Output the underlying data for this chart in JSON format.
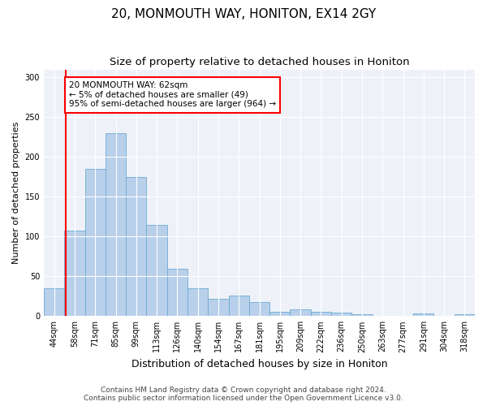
{
  "title": "20, MONMOUTH WAY, HONITON, EX14 2GY",
  "subtitle": "Size of property relative to detached houses in Honiton",
  "xlabel": "Distribution of detached houses by size in Honiton",
  "ylabel": "Number of detached properties",
  "categories": [
    "44sqm",
    "58sqm",
    "71sqm",
    "85sqm",
    "99sqm",
    "113sqm",
    "126sqm",
    "140sqm",
    "154sqm",
    "167sqm",
    "181sqm",
    "195sqm",
    "209sqm",
    "222sqm",
    "236sqm",
    "250sqm",
    "263sqm",
    "277sqm",
    "291sqm",
    "304sqm",
    "318sqm"
  ],
  "values": [
    35,
    107,
    185,
    230,
    175,
    115,
    60,
    35,
    22,
    26,
    18,
    5,
    8,
    5,
    4,
    2,
    0,
    0,
    3,
    0,
    2
  ],
  "bar_color": "#b8d0ea",
  "bar_edge_color": "#6aaad4",
  "vline_color": "red",
  "vline_pos": 0.575,
  "annotation_text": "20 MONMOUTH WAY: 62sqm\n← 5% of detached houses are smaller (49)\n95% of semi-detached houses are larger (964) →",
  "annotation_box_color": "white",
  "annotation_box_edge_color": "red",
  "ylim": [
    0,
    310
  ],
  "yticks": [
    0,
    50,
    100,
    150,
    200,
    250,
    300
  ],
  "background_color": "#eef2f8",
  "footer_text": "Contains HM Land Registry data © Crown copyright and database right 2024.\nContains public sector information licensed under the Open Government Licence v3.0.",
  "title_fontsize": 11,
  "subtitle_fontsize": 9.5,
  "xlabel_fontsize": 9,
  "ylabel_fontsize": 8,
  "tick_fontsize": 7,
  "footer_fontsize": 6.5,
  "annotation_fontsize": 7.5
}
